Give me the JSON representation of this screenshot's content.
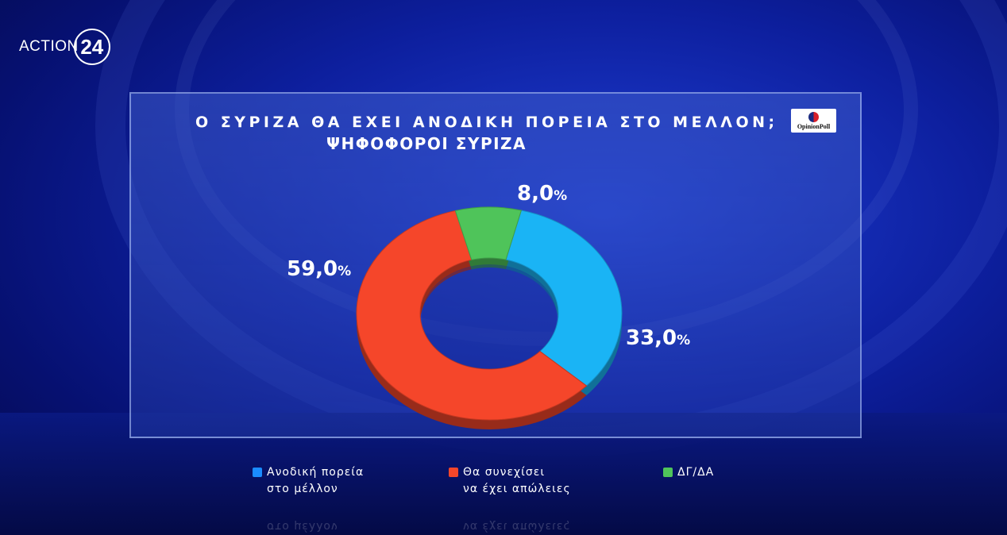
{
  "logo": {
    "word": "ACTION",
    "number": "24"
  },
  "title": {
    "line1": "Ο ΣΥΡΙΖΑ ΘΑ ΕΧΕΙ ΑΝΟΔΙΚΗ ΠΟΡΕΙΑ ΣΤΟ ΜΕΛΛΟΝ;",
    "line2": "ΨΗΦΟΦΟΡΟΙ ΣΥΡΙΖΑ"
  },
  "badge": {
    "text": "OpinionPoll"
  },
  "chart_data": {
    "type": "pie",
    "donut": true,
    "unit": "%",
    "slices": [
      {
        "label": "Ανοδική πορεία στο μέλλον",
        "value": 33.0,
        "display": "33,0",
        "color": "#1ab4f5"
      },
      {
        "label": "Θα συνεχίσει να έχει απώλειες",
        "value": 59.0,
        "display": "59,0",
        "color": "#f5462a"
      },
      {
        "label": "ΔΓ/ΔΑ",
        "value": 8.0,
        "display": "8,0",
        "color": "#4fc45a"
      }
    ]
  },
  "legend": [
    {
      "text": "Ανοδική πορεία\nστο μέλλον",
      "color": "#1a8cff"
    },
    {
      "text": "Θα συνεχίσει\nνα έχει απώλειες",
      "color": "#f5462a"
    },
    {
      "text": "ΔΓ/ΔΑ",
      "color": "#4fc45a"
    }
  ]
}
